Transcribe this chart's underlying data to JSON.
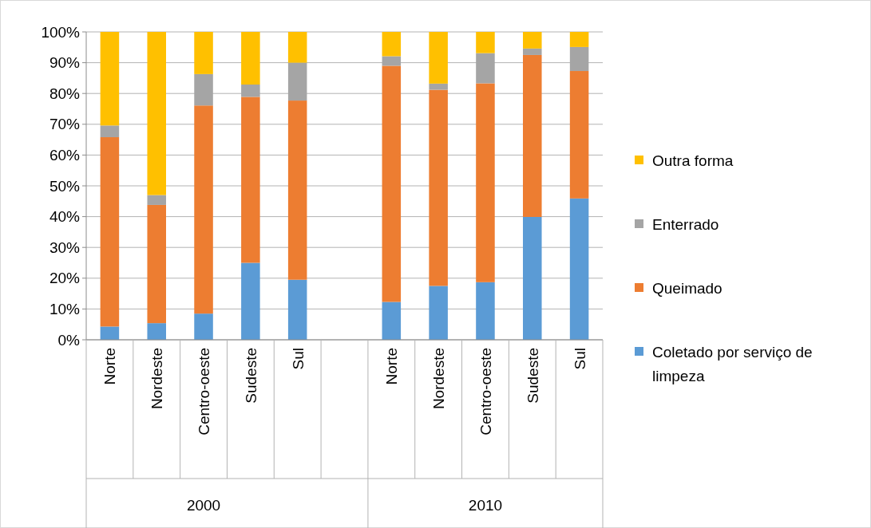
{
  "chart_data": {
    "type": "bar",
    "stacked": true,
    "categories": [
      "Norte",
      "Nordeste",
      "Centro-oeste",
      "Sudeste",
      "Sul",
      null,
      "Norte",
      "Nordeste",
      "Centro-oeste",
      "Sudeste",
      "Sul"
    ],
    "series": [
      {
        "name": "Coletado por serviço de limpeza",
        "color": "#5b9bd5",
        "values": [
          4.3,
          5.4,
          8.5,
          25.0,
          19.5,
          null,
          12.3,
          17.5,
          18.7,
          39.9,
          45.9
        ]
      },
      {
        "name": "Queimado",
        "color": "#ed7d31",
        "values": [
          61.5,
          38.4,
          67.6,
          53.9,
          58.2,
          null,
          76.7,
          63.7,
          64.6,
          52.6,
          41.4
        ]
      },
      {
        "name": "Enterrado",
        "color": "#a5a5a5",
        "values": [
          3.8,
          3.2,
          10.2,
          4.0,
          12.3,
          null,
          3.1,
          2.0,
          9.8,
          2.1,
          7.8
        ]
      },
      {
        "name": "Outra forma",
        "color": "#ffc000",
        "values": [
          30.4,
          53.0,
          13.7,
          17.1,
          10.0,
          null,
          7.9,
          16.8,
          6.9,
          5.4,
          4.9
        ]
      }
    ],
    "ylim": [
      0,
      100
    ],
    "yticks": [
      {
        "value": 0,
        "label": "0%"
      },
      {
        "value": 10,
        "label": "10%"
      },
      {
        "value": 20,
        "label": "20%"
      },
      {
        "value": 30,
        "label": "30%"
      },
      {
        "value": 40,
        "label": "40%"
      },
      {
        "value": 50,
        "label": "50%"
      },
      {
        "value": 60,
        "label": "60%"
      },
      {
        "value": 70,
        "label": "70%"
      },
      {
        "value": 80,
        "label": "80%"
      },
      {
        "value": 90,
        "label": "90%"
      },
      {
        "value": 100,
        "label": "100%"
      }
    ],
    "grid": "y",
    "legend": "right",
    "annotations": [
      "2000",
      "2010"
    ]
  }
}
